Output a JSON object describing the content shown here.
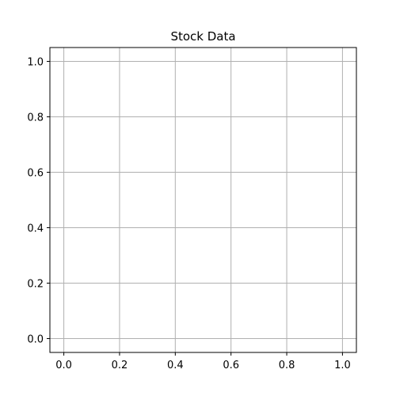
{
  "chart_data": {
    "type": "line",
    "title": "Stock Data",
    "xlabel": "",
    "ylabel": "",
    "xlim": [
      -0.05,
      1.05
    ],
    "ylim": [
      -0.05,
      1.05
    ],
    "x_ticks": [
      0.0,
      0.2,
      0.4,
      0.6,
      0.8,
      1.0
    ],
    "x_tick_labels": [
      "0.0",
      "0.2",
      "0.4",
      "0.6",
      "0.8",
      "1.0"
    ],
    "y_ticks": [
      0.0,
      0.2,
      0.4,
      0.6,
      0.8,
      1.0
    ],
    "y_tick_labels": [
      "0.0",
      "0.2",
      "0.4",
      "0.6",
      "0.8",
      "1.0"
    ],
    "grid": true,
    "series": []
  },
  "colors": {
    "grid": "#b0b0b0",
    "axes": "#000000",
    "background": "#ffffff"
  }
}
